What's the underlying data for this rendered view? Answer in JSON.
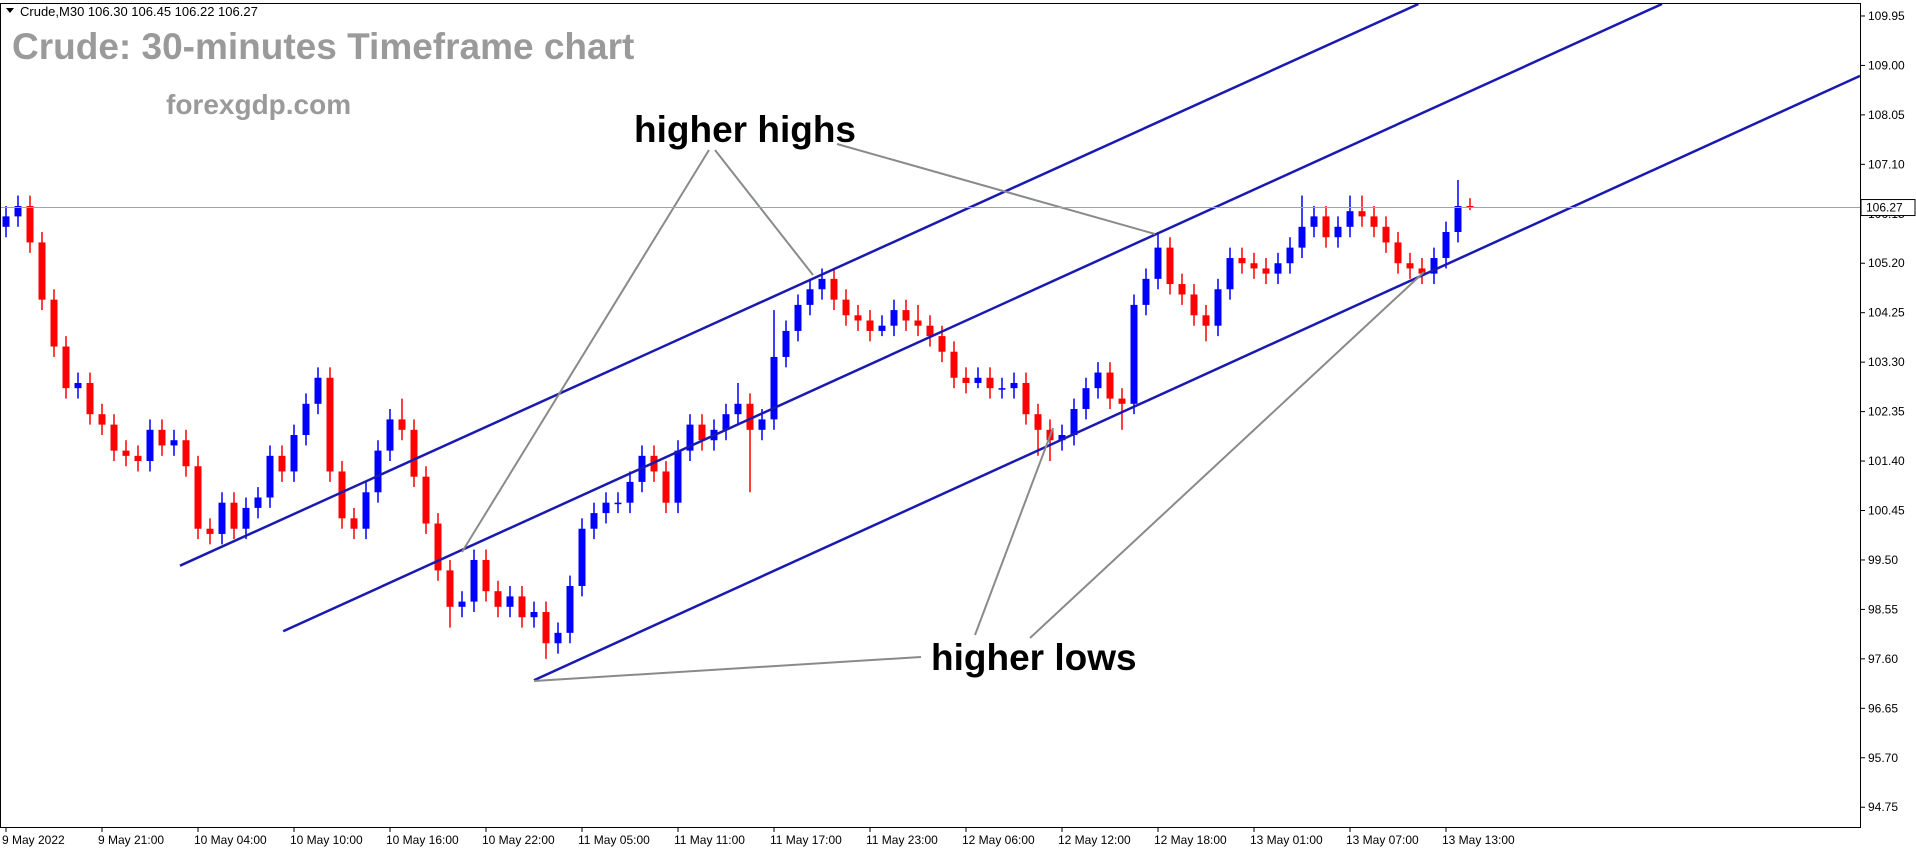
{
  "chart_data": {
    "type": "candlestick",
    "header": "Crude,M30 106.30 106.45 106.22 106.27",
    "title": "Crude: 30-minutes Timeframe chart",
    "subtitle": "forexgdp.com",
    "annotations": [
      "higher highs",
      "higher lows"
    ],
    "bull_color": "#0000ff",
    "bear_color": "#ff0000",
    "trendline_color": "#1a1ab0",
    "current_price": 106.27,
    "ylim": [
      94.37,
      110.18
    ],
    "yticks": [
      {
        "value": 109.95,
        "label": "109.95"
      },
      {
        "value": 109.0,
        "label": "109.00"
      },
      {
        "value": 108.05,
        "label": "108.05"
      },
      {
        "value": 107.1,
        "label": "107.10"
      },
      {
        "value": 106.15,
        "label": "106.15"
      },
      {
        "value": 105.2,
        "label": "105.20"
      },
      {
        "value": 104.25,
        "label": "104.25"
      },
      {
        "value": 103.3,
        "label": "103.30"
      },
      {
        "value": 102.35,
        "label": "102.35"
      },
      {
        "value": 101.4,
        "label": "101.40"
      },
      {
        "value": 100.45,
        "label": "100.45"
      },
      {
        "value": 99.5,
        "label": "99.50"
      },
      {
        "value": 98.55,
        "label": "98.55"
      },
      {
        "value": 97.6,
        "label": "97.60"
      },
      {
        "value": 96.65,
        "label": "96.65"
      },
      {
        "value": 95.7,
        "label": "95.70"
      },
      {
        "value": 94.75,
        "label": "94.75"
      }
    ],
    "categories": [
      "9 May 2022",
      null,
      null,
      null,
      null,
      null,
      null,
      null,
      "9 May 21:00",
      null,
      null,
      null,
      null,
      null,
      null,
      null,
      "10 May 04:00",
      null,
      null,
      null,
      null,
      null,
      null,
      null,
      "10 May 10:00",
      null,
      null,
      null,
      null,
      null,
      null,
      null,
      "10 May 16:00",
      null,
      null,
      null,
      null,
      null,
      null,
      null,
      "10 May 22:00",
      null,
      null,
      null,
      null,
      null,
      null,
      null,
      "11 May 05:00",
      null,
      null,
      null,
      null,
      null,
      null,
      null,
      "11 May 11:00",
      null,
      null,
      null,
      null,
      null,
      null,
      null,
      "11 May 17:00",
      null,
      null,
      null,
      null,
      null,
      null,
      null,
      "11 May 23:00",
      null,
      null,
      null,
      null,
      null,
      null,
      null,
      "12 May 06:00",
      null,
      null,
      null,
      null,
      null,
      null,
      null,
      "12 May 12:00",
      null,
      null,
      null,
      null,
      null,
      null,
      null,
      "12 May 18:00",
      null,
      null,
      null,
      null,
      null,
      null,
      null,
      "13 May 01:00",
      null,
      null,
      null,
      null,
      null,
      null,
      null,
      "13 May 07:00",
      null,
      null,
      null,
      null,
      null,
      null,
      null,
      "13 May 13:00",
      null,
      null
    ],
    "ohlc": [
      [
        105.9,
        106.3,
        105.7,
        106.1
      ],
      [
        106.1,
        106.5,
        105.9,
        106.3
      ],
      [
        106.3,
        106.5,
        105.4,
        105.6
      ],
      [
        105.6,
        105.8,
        104.3,
        104.5
      ],
      [
        104.5,
        104.7,
        103.4,
        103.6
      ],
      [
        103.6,
        103.8,
        102.6,
        102.8
      ],
      [
        102.8,
        103.1,
        102.6,
        102.9
      ],
      [
        102.9,
        103.1,
        102.1,
        102.3
      ],
      [
        102.3,
        102.5,
        101.9,
        102.1
      ],
      [
        102.1,
        102.3,
        101.4,
        101.6
      ],
      [
        101.6,
        101.8,
        101.3,
        101.5
      ],
      [
        101.5,
        101.7,
        101.2,
        101.4
      ],
      [
        101.4,
        102.2,
        101.2,
        102.0
      ],
      [
        102.0,
        102.2,
        101.5,
        101.7
      ],
      [
        101.7,
        102.0,
        101.5,
        101.8
      ],
      [
        101.8,
        102.0,
        101.1,
        101.3
      ],
      [
        101.3,
        101.5,
        99.9,
        100.1
      ],
      [
        100.1,
        100.3,
        99.8,
        100.0
      ],
      [
        100.0,
        100.8,
        99.8,
        100.6
      ],
      [
        100.6,
        100.8,
        99.9,
        100.1
      ],
      [
        100.1,
        100.7,
        99.9,
        100.5
      ],
      [
        100.5,
        100.9,
        100.3,
        100.7
      ],
      [
        100.7,
        101.7,
        100.5,
        101.5
      ],
      [
        101.5,
        101.7,
        101.0,
        101.2
      ],
      [
        101.2,
        102.1,
        101.0,
        101.9
      ],
      [
        101.9,
        102.7,
        101.7,
        102.5
      ],
      [
        102.5,
        103.2,
        102.3,
        103.0
      ],
      [
        103.0,
        103.2,
        101.0,
        101.2
      ],
      [
        101.2,
        101.4,
        100.1,
        100.3
      ],
      [
        100.3,
        100.5,
        99.9,
        100.1
      ],
      [
        100.1,
        101.0,
        99.9,
        100.8
      ],
      [
        100.8,
        101.8,
        100.6,
        101.6
      ],
      [
        101.6,
        102.4,
        101.4,
        102.2
      ],
      [
        102.2,
        102.6,
        101.8,
        102.0
      ],
      [
        102.0,
        102.2,
        100.9,
        101.1
      ],
      [
        101.1,
        101.3,
        100.0,
        100.2
      ],
      [
        100.2,
        100.4,
        99.1,
        99.3
      ],
      [
        99.3,
        99.5,
        98.2,
        98.6
      ],
      [
        98.6,
        98.9,
        98.4,
        98.7
      ],
      [
        98.7,
        99.7,
        98.5,
        99.5
      ],
      [
        99.5,
        99.7,
        98.7,
        98.9
      ],
      [
        98.9,
        99.1,
        98.4,
        98.6
      ],
      [
        98.6,
        99.0,
        98.4,
        98.8
      ],
      [
        98.8,
        99.0,
        98.2,
        98.4
      ],
      [
        98.4,
        98.7,
        98.2,
        98.5
      ],
      [
        98.5,
        98.7,
        97.6,
        97.9
      ],
      [
        97.9,
        98.3,
        97.7,
        98.1
      ],
      [
        98.1,
        99.2,
        97.9,
        99.0
      ],
      [
        99.0,
        100.3,
        98.8,
        100.1
      ],
      [
        100.1,
        100.6,
        99.9,
        100.4
      ],
      [
        100.4,
        100.8,
        100.2,
        100.6
      ],
      [
        100.6,
        100.8,
        100.4,
        100.6
      ],
      [
        100.6,
        101.2,
        100.4,
        101.0
      ],
      [
        101.0,
        101.7,
        100.8,
        101.5
      ],
      [
        101.5,
        101.7,
        101.0,
        101.2
      ],
      [
        101.2,
        101.4,
        100.4,
        100.6
      ],
      [
        100.6,
        101.8,
        100.4,
        101.6
      ],
      [
        101.6,
        102.3,
        101.4,
        102.1
      ],
      [
        102.1,
        102.3,
        101.6,
        101.8
      ],
      [
        101.8,
        102.2,
        101.6,
        102.0
      ],
      [
        102.0,
        102.5,
        101.8,
        102.3
      ],
      [
        102.3,
        102.9,
        102.1,
        102.5
      ],
      [
        102.5,
        102.7,
        100.8,
        102.0
      ],
      [
        102.0,
        102.4,
        101.8,
        102.2
      ],
      [
        102.2,
        104.3,
        102.0,
        103.4
      ],
      [
        103.4,
        104.1,
        103.2,
        103.9
      ],
      [
        103.9,
        104.6,
        103.7,
        104.4
      ],
      [
        104.4,
        104.9,
        104.2,
        104.7
      ],
      [
        104.7,
        105.1,
        104.5,
        104.9
      ],
      [
        104.9,
        105.1,
        104.3,
        104.5
      ],
      [
        104.5,
        104.7,
        104.0,
        104.2
      ],
      [
        104.2,
        104.4,
        103.9,
        104.1
      ],
      [
        104.1,
        104.3,
        103.7,
        103.9
      ],
      [
        103.9,
        104.2,
        103.8,
        104.0
      ],
      [
        104.0,
        104.5,
        103.8,
        104.3
      ],
      [
        104.3,
        104.5,
        103.9,
        104.1
      ],
      [
        104.1,
        104.4,
        103.8,
        104.0
      ],
      [
        104.0,
        104.2,
        103.6,
        103.8
      ],
      [
        103.8,
        104.0,
        103.3,
        103.5
      ],
      [
        103.5,
        103.7,
        102.8,
        103.0
      ],
      [
        103.0,
        103.2,
        102.7,
        102.9
      ],
      [
        102.9,
        103.2,
        102.8,
        103.0
      ],
      [
        103.0,
        103.2,
        102.6,
        102.8
      ],
      [
        102.8,
        103.0,
        102.6,
        102.8
      ],
      [
        102.8,
        103.1,
        102.6,
        102.9
      ],
      [
        102.9,
        103.1,
        102.1,
        102.3
      ],
      [
        102.3,
        102.5,
        101.5,
        102.0
      ],
      [
        102.0,
        102.2,
        101.4,
        101.8
      ],
      [
        101.8,
        102.1,
        101.6,
        101.9
      ],
      [
        101.9,
        102.6,
        101.7,
        102.4
      ],
      [
        102.4,
        103.0,
        102.2,
        102.8
      ],
      [
        102.8,
        103.3,
        102.6,
        103.1
      ],
      [
        103.1,
        103.3,
        102.4,
        102.6
      ],
      [
        102.6,
        102.8,
        102.0,
        102.5
      ],
      [
        102.5,
        104.6,
        102.3,
        104.4
      ],
      [
        104.4,
        105.1,
        104.2,
        104.9
      ],
      [
        104.9,
        105.8,
        104.7,
        105.5
      ],
      [
        105.5,
        105.7,
        104.6,
        104.8
      ],
      [
        104.8,
        105.0,
        104.4,
        104.6
      ],
      [
        104.6,
        104.8,
        104.0,
        104.2
      ],
      [
        104.2,
        104.4,
        103.7,
        104.0
      ],
      [
        104.0,
        104.9,
        103.8,
        104.7
      ],
      [
        104.7,
        105.5,
        104.5,
        105.3
      ],
      [
        105.3,
        105.5,
        105.0,
        105.2
      ],
      [
        105.2,
        105.4,
        104.9,
        105.1
      ],
      [
        105.1,
        105.3,
        104.8,
        105.0
      ],
      [
        105.0,
        105.4,
        104.8,
        105.2
      ],
      [
        105.2,
        105.7,
        105.0,
        105.5
      ],
      [
        105.5,
        106.5,
        105.3,
        105.9
      ],
      [
        105.9,
        106.3,
        105.7,
        106.1
      ],
      [
        106.1,
        106.3,
        105.5,
        105.7
      ],
      [
        105.7,
        106.1,
        105.5,
        105.9
      ],
      [
        105.9,
        106.5,
        105.7,
        106.2
      ],
      [
        106.2,
        106.5,
        105.9,
        106.1
      ],
      [
        106.1,
        106.3,
        105.7,
        105.9
      ],
      [
        105.9,
        106.1,
        105.4,
        105.6
      ],
      [
        105.6,
        105.8,
        105.0,
        105.2
      ],
      [
        105.2,
        105.4,
        104.9,
        105.1
      ],
      [
        105.1,
        105.3,
        104.8,
        105.0
      ],
      [
        105.0,
        105.5,
        104.8,
        105.3
      ],
      [
        105.3,
        106.0,
        105.1,
        105.8
      ],
      [
        105.8,
        106.8,
        105.6,
        106.3
      ],
      [
        106.3,
        106.45,
        106.22,
        106.27
      ]
    ],
    "trendlines": [
      {
        "x": [
          14.5,
          117.7
        ],
        "y": [
          99.39,
          110.18
        ]
      },
      {
        "x": [
          23.1,
          138.0
        ],
        "y": [
          98.13,
          110.18
        ]
      },
      {
        "x": [
          44.0,
          154.5
        ],
        "y": [
          97.19,
          108.8
        ]
      }
    ]
  }
}
